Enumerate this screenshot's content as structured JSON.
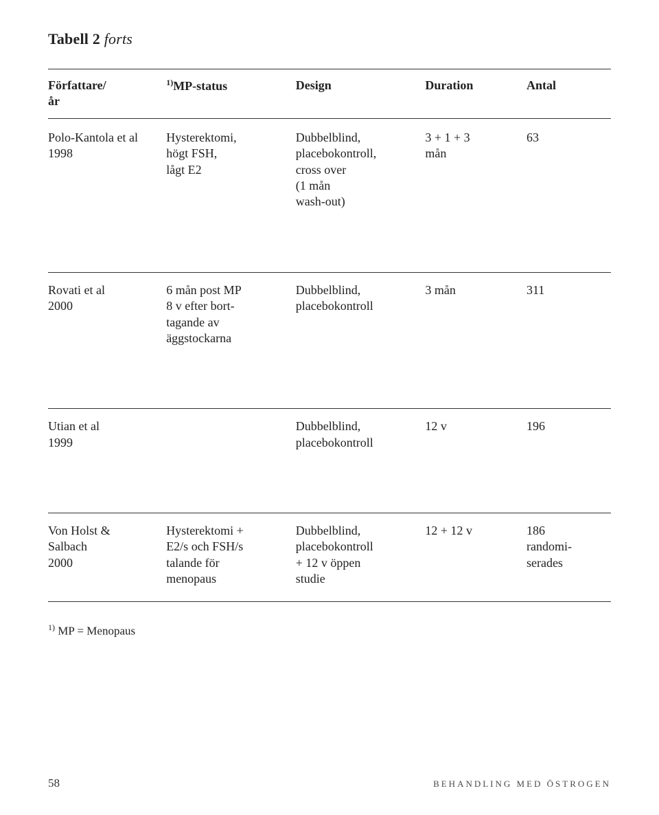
{
  "title_main": "Tabell 2",
  "title_suffix": "forts",
  "headers": {
    "col1_line1": "Författare/",
    "col1_line2": "år",
    "col2_sup": "1)",
    "col2": "MP-status",
    "col3": "Design",
    "col4": "Duration",
    "col5": "Antal"
  },
  "rows": [
    {
      "author_l1": "Polo-Kantola et al",
      "author_l2": "1998",
      "mp_l1": "Hysterektomi,",
      "mp_l2": "högt FSH,",
      "mp_l3": "lågt E2",
      "design_l1": "Dubbelblind,",
      "design_l2": "placebokontroll,",
      "design_l3": "cross over",
      "design_l4": "(1 mån",
      "design_l5": "wash-out)",
      "duration_l1": "3 + 1 + 3",
      "duration_l2": "mån",
      "antal": "63"
    },
    {
      "author_l1": "Rovati et al",
      "author_l2": "2000",
      "mp_l1": "6 mån post MP",
      "mp_l2": "8 v efter bort-",
      "mp_l3": "tagande av",
      "mp_l4": "äggstockarna",
      "design_l1": "Dubbelblind,",
      "design_l2": "placebokontroll",
      "duration_l1": "3 mån",
      "antal": "311"
    },
    {
      "author_l1": "Utian et al",
      "author_l2": "1999",
      "design_l1": "Dubbelblind,",
      "design_l2": "placebokontroll",
      "duration_l1": "12 v",
      "antal": "196"
    },
    {
      "author_l1": "Von Holst &",
      "author_l2": "Salbach",
      "author_l3": "2000",
      "mp_l1": "Hysterektomi +",
      "mp_l2": "E2/s och FSH/s",
      "mp_l3": "talande för",
      "mp_l4": "menopaus",
      "design_l1": "Dubbelblind,",
      "design_l2": "placebokontroll",
      "design_l3": "+ 12 v öppen",
      "design_l4": "studie",
      "duration_l1": "12 + 12 v",
      "antal_l1": "186",
      "antal_l2": "randomi-",
      "antal_l3": "serades"
    }
  ],
  "footnote_sup": "1)",
  "footnote_text": " MP = Menopaus",
  "footer_page": "58",
  "footer_title": "BEHANDLING MED ÖSTROGEN"
}
